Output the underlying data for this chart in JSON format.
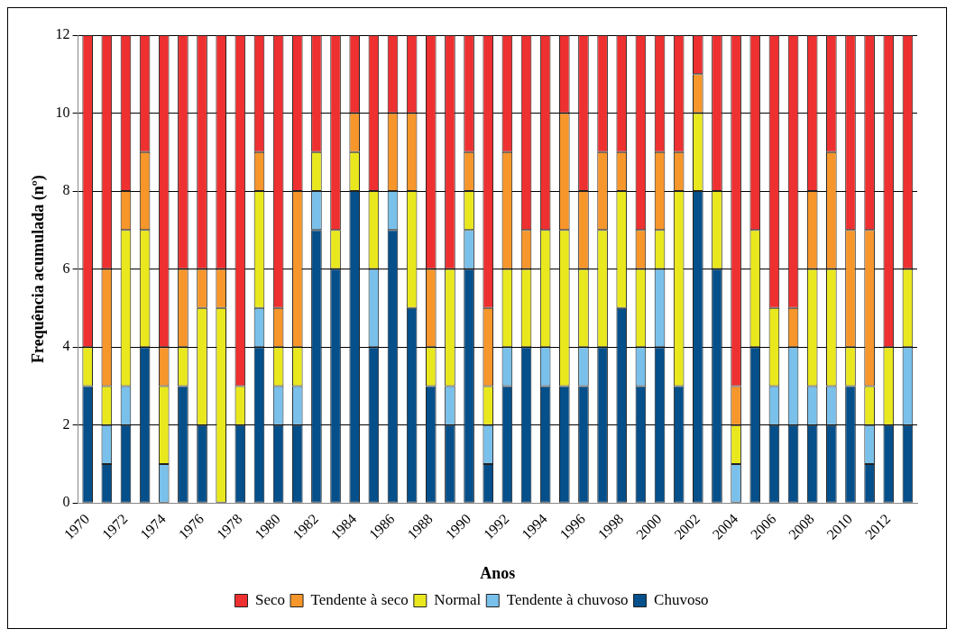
{
  "chart_data": {
    "type": "bar",
    "stacked": true,
    "xlabel": "Anos",
    "ylabel": "Frequência acumulada (nº)",
    "categories": [
      "1970",
      null,
      "1972",
      null,
      "1974",
      null,
      "1976",
      null,
      "1978",
      null,
      "1980",
      null,
      "1982",
      null,
      "1984",
      null,
      "1986",
      null,
      "1988",
      null,
      "1990",
      null,
      "1992",
      null,
      "1994",
      null,
      "1996",
      null,
      "1998",
      null,
      "2000",
      null,
      "2002",
      null,
      "2004",
      null,
      "2006",
      null,
      "2008",
      null,
      "2010",
      null,
      "2012",
      null
    ],
    "series": [
      {
        "name": "Chuvoso",
        "color": "#054f8a",
        "values": [
          3,
          1,
          2,
          4,
          0,
          3,
          2,
          0,
          2,
          4,
          2,
          2,
          7,
          6,
          8,
          4,
          7,
          5,
          3,
          2,
          6,
          1,
          3,
          4,
          3,
          3,
          3,
          4,
          5,
          3,
          4,
          3,
          8,
          6,
          0,
          4,
          2,
          2,
          2,
          2,
          3,
          1,
          2,
          2
        ]
      },
      {
        "name": "Tendente à chuvoso",
        "color": "#79c0ea",
        "values": [
          0,
          1,
          1,
          0,
          1,
          0,
          0,
          0,
          0,
          1,
          1,
          1,
          1,
          0,
          0,
          2,
          1,
          0,
          0,
          1,
          1,
          1,
          1,
          0,
          1,
          0,
          1,
          0,
          0,
          1,
          2,
          0,
          0,
          0,
          1,
          0,
          1,
          2,
          1,
          1,
          0,
          1,
          0,
          2
        ]
      },
      {
        "name": "Normal",
        "color": "#e9e81e",
        "values": [
          1,
          1,
          4,
          3,
          2,
          1,
          3,
          5,
          1,
          3,
          1,
          1,
          1,
          1,
          1,
          2,
          0,
          3,
          1,
          3,
          1,
          1,
          2,
          2,
          3,
          4,
          2,
          3,
          3,
          2,
          1,
          5,
          2,
          2,
          1,
          3,
          2,
          0,
          3,
          3,
          1,
          1,
          2,
          2
        ]
      },
      {
        "name": "Tendente à seco",
        "color": "#f7962b",
        "values": [
          0,
          3,
          1,
          2,
          1,
          2,
          1,
          1,
          0,
          1,
          1,
          4,
          0,
          0,
          1,
          0,
          2,
          2,
          2,
          0,
          1,
          2,
          3,
          1,
          0,
          3,
          2,
          2,
          1,
          1,
          2,
          1,
          1,
          0,
          1,
          0,
          0,
          1,
          2,
          3,
          3,
          4,
          0,
          0
        ]
      },
      {
        "name": "Seco",
        "color": "#ee3030",
        "values": [
          8,
          6,
          4,
          3,
          8,
          6,
          6,
          6,
          9,
          3,
          7,
          4,
          3,
          5,
          2,
          4,
          2,
          2,
          6,
          6,
          3,
          7,
          3,
          5,
          5,
          2,
          4,
          3,
          3,
          5,
          3,
          3,
          1,
          4,
          9,
          5,
          7,
          7,
          4,
          3,
          5,
          5,
          8,
          6
        ]
      }
    ],
    "ylim": [
      0,
      12
    ],
    "yticks": [
      0,
      2,
      4,
      6,
      8,
      10,
      12
    ],
    "grid": "y",
    "legend": "bottom"
  }
}
